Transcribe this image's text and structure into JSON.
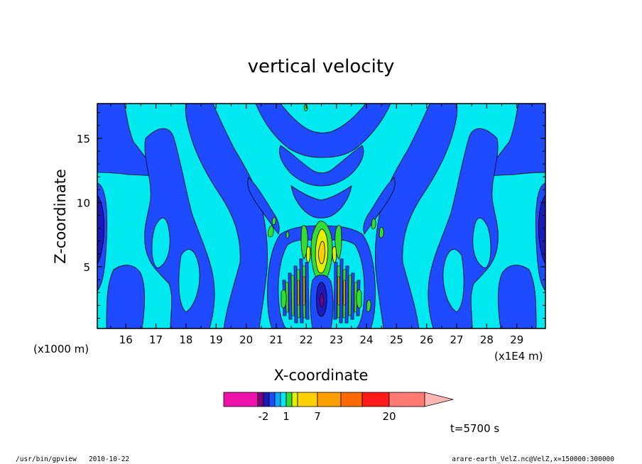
{
  "chart_data": {
    "type": "contour",
    "title": "vertical velocity",
    "xlabel": "X-coordinate",
    "ylabel": "Z-coordinate",
    "x_unit_left": "(x1000 m)",
    "x_unit_right": "(x1E4 m)",
    "x_ticks": [
      "16",
      "17",
      "18",
      "19",
      "20",
      "21",
      "22",
      "23",
      "24",
      "25",
      "26",
      "27",
      "28",
      "29"
    ],
    "x_tick_values": [
      16,
      17,
      18,
      19,
      20,
      21,
      22,
      23,
      24,
      25,
      26,
      27,
      28,
      29
    ],
    "xlim": [
      15.05,
      29.95
    ],
    "y_ticks": [
      "5",
      "10",
      "15"
    ],
    "y_tick_values": [
      5,
      10,
      15
    ],
    "ylim": [
      0.2,
      17.7
    ],
    "colorbar": {
      "tick_labels": [
        "-2",
        "1",
        "7",
        "20"
      ],
      "tick_values": [
        -2,
        1,
        7,
        20
      ],
      "levels": [
        -12,
        -4,
        -2,
        -1,
        0,
        0.5,
        1,
        2,
        4,
        7,
        11,
        15,
        20,
        30
      ],
      "colors": [
        "#ee11aa",
        "#7f007f",
        "#1a1ab8",
        "#1e4bff",
        "#0aa8ff",
        "#00e8f0",
        "#33dd33",
        "#e0f000",
        "#ffd000",
        "#ffa000",
        "#ff6a00",
        "#ff1a1a",
        "#ff7a72",
        "#ffb6b2"
      ],
      "extend": "max"
    },
    "fill_colors": {
      "strong_down": "#1a1ab8",
      "down": "#1e4bff",
      "weak": "#00e8f0",
      "up": "#33dd33",
      "strong_up": "#e0f000",
      "stronger_up": "#ffd000"
    }
  },
  "annotation": "t=5700 s",
  "footer": {
    "left": "/usr/bin/gpview   2010-10-22",
    "right": "arare-earth_VelZ.nc@VelZ,x=150000:300000"
  }
}
